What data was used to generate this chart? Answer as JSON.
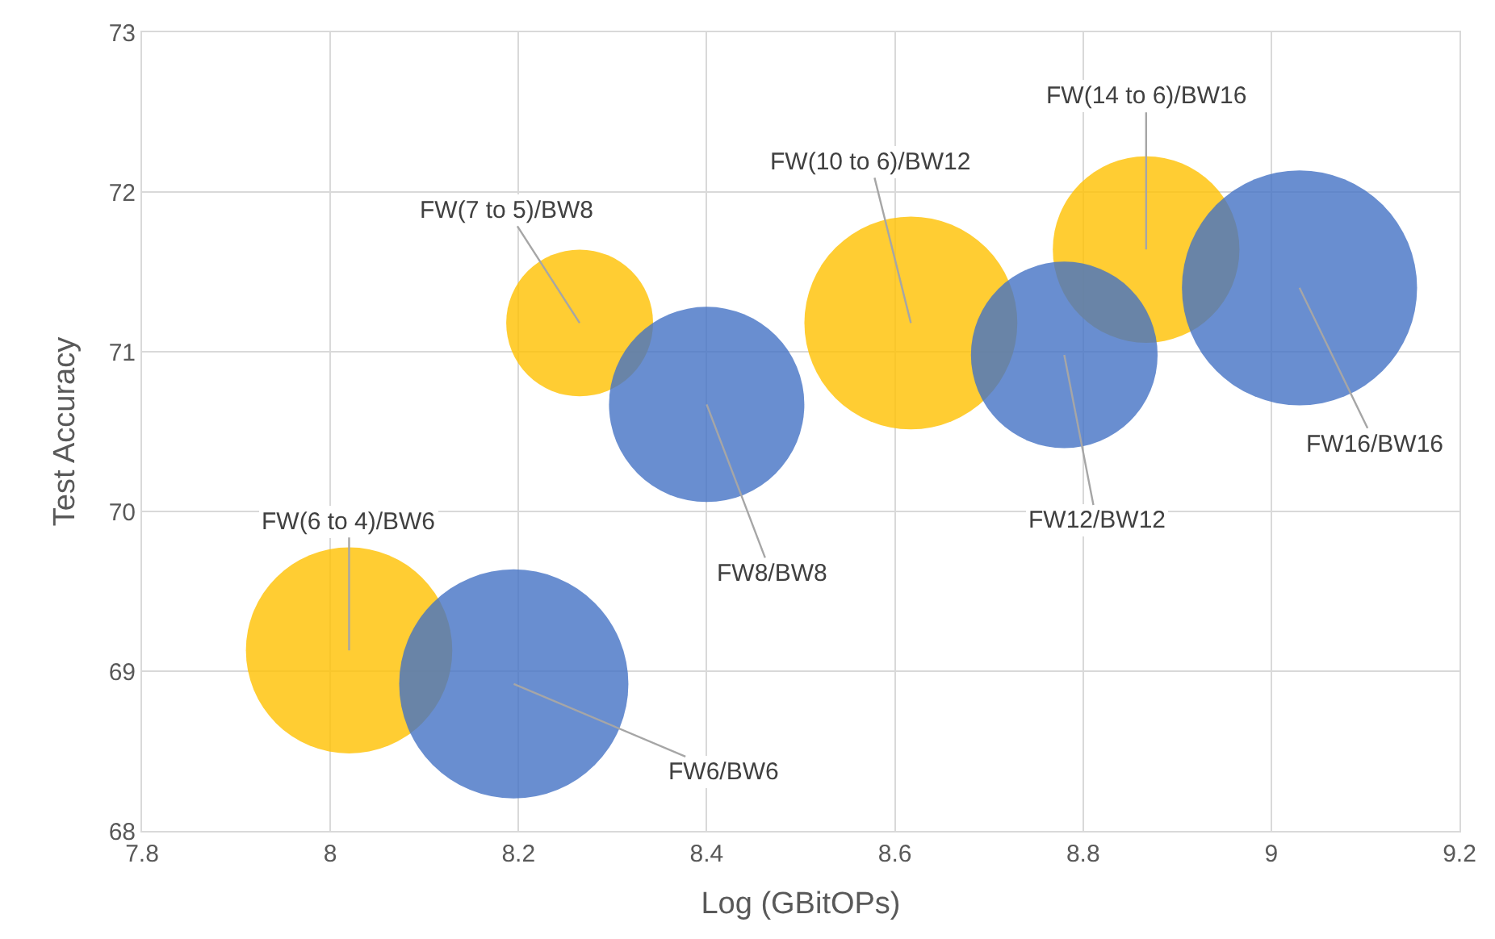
{
  "chart_data": {
    "type": "bubble",
    "xlabel": "Log (GBitOPs)",
    "ylabel": "Test Accuracy",
    "series": [
      {
        "color": "#ffc000",
        "x": [
          8.02,
          8.265,
          8.617,
          8.867
        ],
        "values": [
          69.13,
          71.18,
          71.18,
          71.64
        ],
        "sizes": [
          0.77,
          0.39,
          0.82,
          0.63
        ]
      },
      {
        "color": "#4472c4",
        "x": [
          8.195,
          8.4,
          8.78,
          9.03
        ],
        "values": [
          68.92,
          70.67,
          70.98,
          71.4
        ],
        "sizes": [
          0.95,
          0.69,
          0.63,
          1
        ]
      }
    ],
    "annotations": [
      {
        "text": "FW(6 to 4)/BW6",
        "x": 8.02,
        "y": 69.13
      },
      {
        "text": "FW6/BW6",
        "x": 8.195,
        "y": 68.92
      },
      {
        "text": "FW(7 to 5)/BW8",
        "x": 8.265,
        "y": 71.18
      },
      {
        "text": "FW8/BW8",
        "x": 8.4,
        "y": 70.67
      },
      {
        "text": "FW(10 to 6)/BW12",
        "x": 8.617,
        "y": 71.18
      },
      {
        "text": "FW12/BW12",
        "x": 8.78,
        "y": 70.98
      },
      {
        "text": "FW(14 to 6)/BW16",
        "x": 8.867,
        "y": 71.64
      },
      {
        "text": "FW16/BW16",
        "x": 9.03,
        "y": 71.4
      }
    ],
    "xlim": [
      7.8,
      9.2
    ],
    "xticks": [
      7.8,
      8,
      8.2,
      8.4,
      8.6,
      8.8,
      9,
      9.2
    ],
    "ylim": [
      68,
      73
    ],
    "yticks": [
      68,
      69,
      70,
      71,
      72,
      73
    ],
    "grid": true
  }
}
